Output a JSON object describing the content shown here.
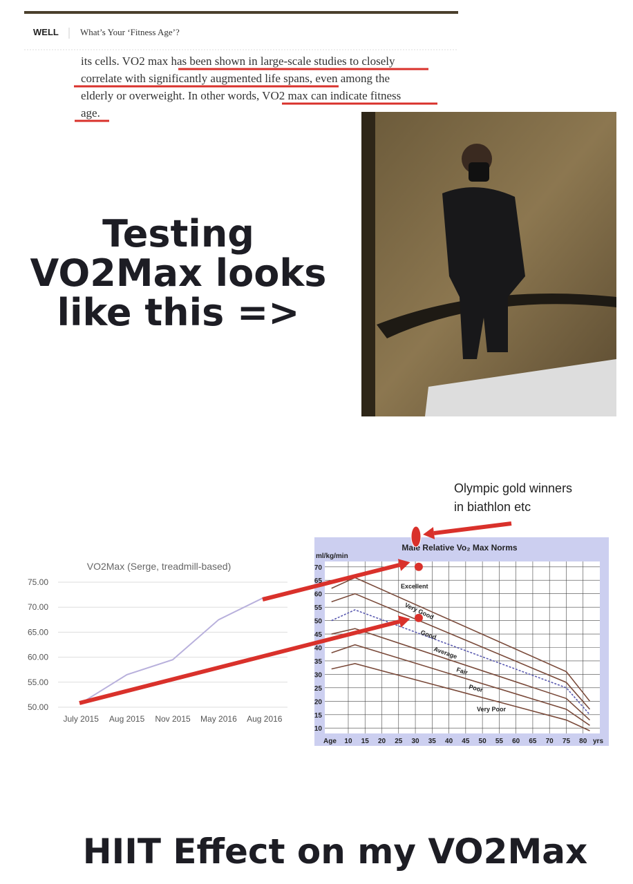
{
  "header": {
    "section": "WELL",
    "title": "What’s Your ‘Fitness Age’?"
  },
  "article": {
    "lines": [
      "its cells. VO2 max has been shown in large-scale studies to closely",
      "correlate with significantly augmented life spans, even among the",
      "elderly or overweight. In other words, VO2 max can indicate fitness",
      "age."
    ]
  },
  "slide": {
    "caption_lines": [
      "Testing",
      "VO2Max looks",
      "like this =>"
    ],
    "footer": "HIIT Effect on my VO2Max",
    "callout_lines": [
      "Olympic gold winners",
      "in biathlon etc"
    ]
  },
  "chart_data": [
    {
      "type": "line",
      "title": "VO2Max (Serge, treadmill-based)",
      "categories": [
        "July 2015",
        "Aug 2015",
        "Nov 2015",
        "May 2016",
        "Aug 2016"
      ],
      "values": [
        50.8,
        56.5,
        59.5,
        67.5,
        72
      ],
      "color": "#b8b0dc",
      "ylim": [
        50,
        75
      ],
      "yticks": [
        {
          "value": 50,
          "label": "50.00"
        },
        {
          "value": 55,
          "label": "55.00"
        },
        {
          "value": 60,
          "label": "60.00"
        },
        {
          "value": 65,
          "label": "65.00"
        },
        {
          "value": 70,
          "label": "70.00"
        },
        {
          "value": 75,
          "label": "75.00"
        }
      ],
      "grid": true
    },
    {
      "type": "line",
      "title": "Male Relative Vo₂ Max Norms",
      "ylabel": "ml/kg/min",
      "xlabel": "Age",
      "xunit": "yrs",
      "xlim": [
        3,
        85
      ],
      "ylim": [
        8,
        72
      ],
      "xticks": [
        10,
        15,
        20,
        25,
        30,
        35,
        40,
        45,
        50,
        55,
        60,
        65,
        70,
        75,
        80
      ],
      "yticks": [
        10,
        15,
        20,
        25,
        30,
        35,
        40,
        45,
        50,
        55,
        60,
        65,
        70
      ],
      "grid": true,
      "series": [
        {
          "color": "#7a4a3a",
          "x": [
            5,
            12,
            75,
            82
          ],
          "values": [
            62,
            66,
            31,
            20
          ]
        },
        {
          "color": "#7a4a3a",
          "x": [
            5,
            12,
            75,
            82
          ],
          "values": [
            57,
            60,
            27,
            17
          ]
        },
        {
          "color": "#5a5ab0",
          "x": [
            5,
            12,
            75,
            82
          ],
          "values": [
            50,
            54,
            25,
            15
          ]
        },
        {
          "color": "#7a4a3a",
          "x": [
            5,
            12,
            75,
            82
          ],
          "values": [
            45,
            47,
            21,
            13
          ]
        },
        {
          "color": "#7a4a3a",
          "x": [
            5,
            12,
            75,
            82
          ],
          "values": [
            38,
            41,
            17,
            11
          ]
        },
        {
          "color": "#7a4a3a",
          "x": [
            5,
            12,
            75,
            82
          ],
          "values": [
            32,
            34,
            13,
            9
          ]
        }
      ],
      "annotations": [
        "Excellent",
        "Very Good",
        "Good",
        "Average",
        "Fair",
        "Poor",
        "Very Poor"
      ],
      "highlights": {
        "color": "#d9312b",
        "x": [
          31,
          31
        ],
        "values": [
          70,
          51
        ]
      }
    }
  ]
}
